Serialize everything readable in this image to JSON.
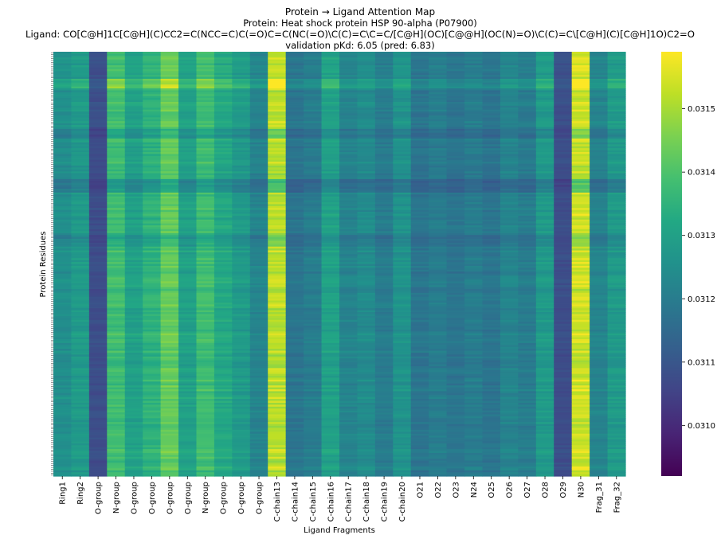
{
  "chart_data": {
    "type": "heatmap",
    "title": "Protein → Ligand Attention Map",
    "subtitle_protein": "Protein: Heat shock protein HSP 90-alpha (P07900)",
    "subtitle_ligand": "Ligand: CO[C@H]1C[C@H](C)CC2=C(NCC=C)C(=O)C=C(NC(=O)\\C(C)=C\\C=C/[C@H](OC)[C@@H](OC(N)=O)\\C(C)=C\\[C@H](C)[C@H]1O)C2=O",
    "subtitle_pkd": "validation pKd: 6.05 (pred: 6.83)",
    "xlabel": "Ligand Fragments",
    "ylabel": "Protein Residues",
    "colormap": "viridis",
    "colorbar": {
      "vmin": 0.03092,
      "vmax": 0.03159,
      "ticks": [
        0.031,
        0.0311,
        0.0312,
        0.0313,
        0.0314,
        0.0315
      ],
      "tick_labels": [
        "0.0310",
        "0.0311",
        "0.0312",
        "0.0313",
        "0.0314",
        "0.0315"
      ]
    },
    "x_labels": [
      "Ring1",
      "Ring2",
      "O-group",
      "N-group",
      "O-group",
      "O-group",
      "O-group",
      "O-group",
      "N-group",
      "O-group",
      "O-group",
      "O-group",
      "C-chain13",
      "C-chain14",
      "C-chain15",
      "C-chain16",
      "C-chain17",
      "C-chain18",
      "C-chain19",
      "C-chain20",
      "O21",
      "O22",
      "O23",
      "N24",
      "O25",
      "O26",
      "O27",
      "O28",
      "O29",
      "N30",
      "Frag_31",
      "Frag_32"
    ],
    "column_mean_attention": [
      0.03125,
      0.03128,
      0.03108,
      0.03138,
      0.0313,
      0.03135,
      0.03143,
      0.0313,
      0.03138,
      0.03132,
      0.03128,
      0.03122,
      0.03152,
      0.03118,
      0.0312,
      0.0313,
      0.03122,
      0.03124,
      0.0312,
      0.03126,
      0.03118,
      0.0312,
      0.03118,
      0.0312,
      0.03118,
      0.03122,
      0.0312,
      0.03128,
      0.03108,
      0.03154,
      0.03122,
      0.03128
    ],
    "residue_count": 220,
    "row_tick_marks": 220
  }
}
